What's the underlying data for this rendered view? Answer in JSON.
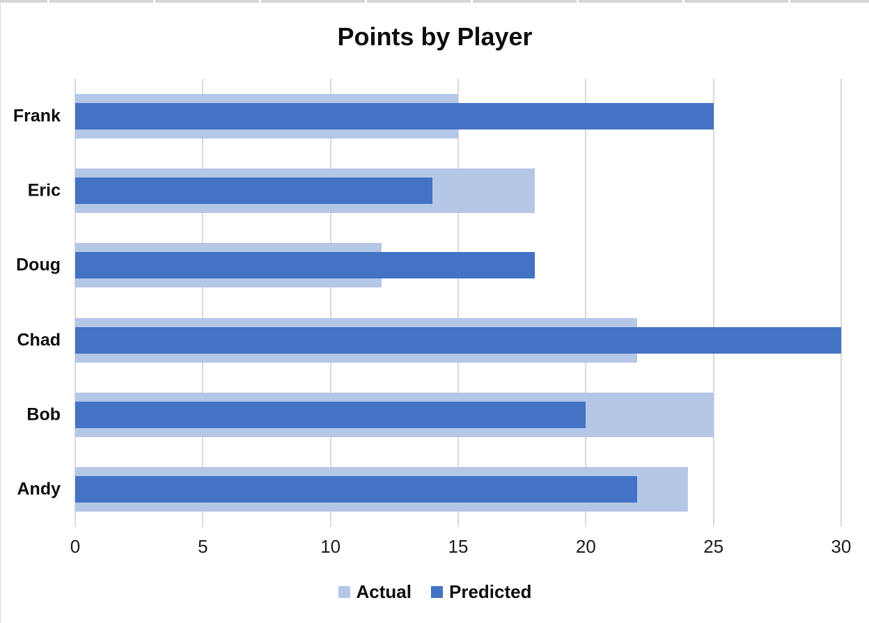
{
  "chart_data": {
    "type": "bar",
    "orientation": "horizontal",
    "title": "Points by Player",
    "xlabel": "",
    "ylabel": "",
    "categories": [
      "Frank",
      "Eric",
      "Doug",
      "Chad",
      "Bob",
      "Andy"
    ],
    "series": [
      {
        "name": "Actual",
        "color": "#B4C7E7",
        "values": [
          15,
          18,
          12,
          22,
          25,
          24
        ]
      },
      {
        "name": "Predicted",
        "color": "#4472C4",
        "values": [
          25,
          14,
          18,
          30,
          20,
          22
        ]
      }
    ],
    "x_axis": {
      "min": 0,
      "max": 30,
      "ticks": [
        0,
        5,
        10,
        15,
        20,
        25,
        30
      ]
    },
    "grid": "vertical-gridlines-on",
    "legend_position": "bottom",
    "colors": {
      "gridline": "#D9D9D9",
      "tick_text": "#1A1A1A",
      "title_text": "#0D0D0D"
    }
  }
}
